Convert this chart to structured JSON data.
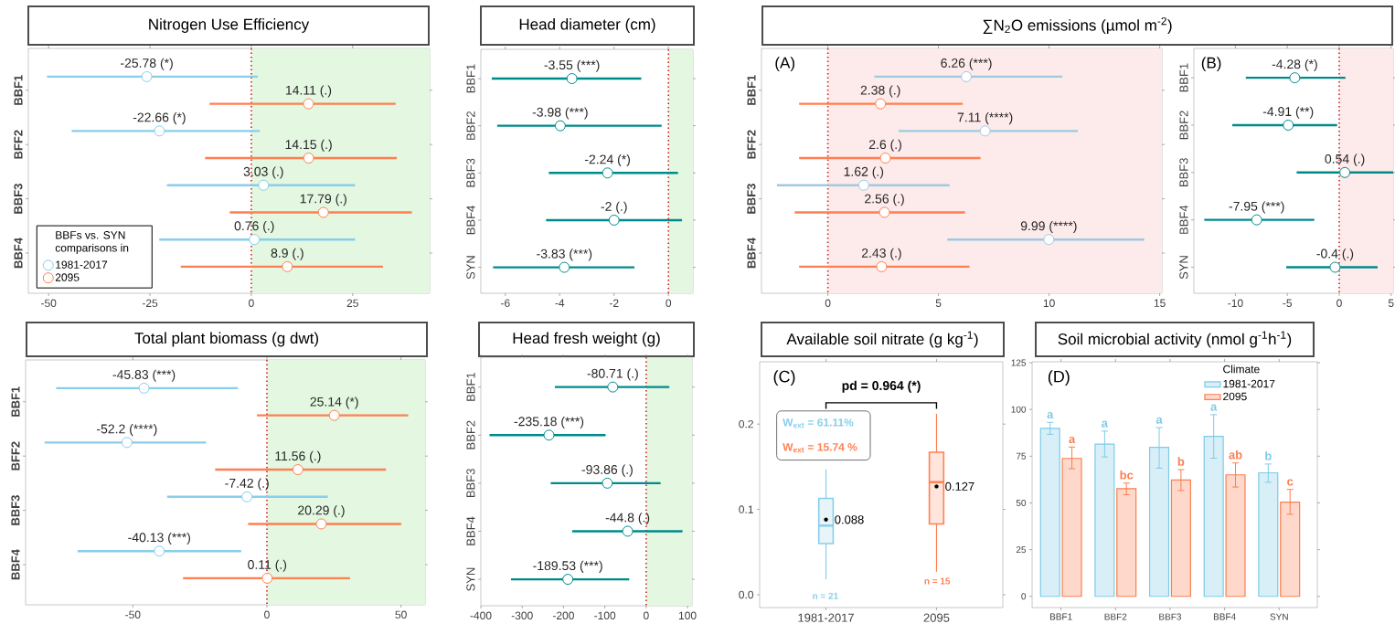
{
  "chart_data": [
    {
      "type": "scatter",
      "orientation": "horizontal",
      "title": "Nitrogen Use Efficiency",
      "categories": [
        "BBF1",
        "BFF2",
        "BBF3",
        "BBF4"
      ],
      "xlim": [
        -55,
        44
      ],
      "xticks": [
        -50,
        -25,
        0,
        25
      ],
      "marker": "circle",
      "legend": "bottom left",
      "legend_title": "BBFs vs. SYN comparisons in",
      "series": [
        {
          "name": "1981-2017",
          "color": "#87ceeb",
          "values": [
            -25.78,
            -22.66,
            3.03,
            0.76
          ],
          "errors": [
            [
              -50.4,
              1.6
            ],
            [
              -44.3,
              2.1
            ],
            [
              -20.8,
              25.6
            ],
            [
              -22.7,
              25.6
            ]
          ],
          "value_labels": [
            "-25.78 (*)",
            "-22.66 (*)",
            "3.03 (.)",
            "0.76 (.)"
          ]
        },
        {
          "name": "2095",
          "color": "#ff7f50",
          "values": [
            14.11,
            14.15,
            17.79,
            8.9
          ],
          "errors": [
            [
              -10.3,
              35.6
            ],
            [
              -11.4,
              35.9
            ],
            [
              -5.3,
              39.6
            ],
            [
              -17.4,
              32.5
            ]
          ],
          "value_labels": [
            "14.11 (.)",
            "14.15 (.)",
            "17.79 (.)",
            "8.9 (.)"
          ]
        }
      ],
      "ref_lines": [
        {
          "axis": "x",
          "value": 0,
          "color": "#cc2222",
          "line_style": "dotted"
        }
      ],
      "bands": [
        {
          "axis": "x",
          "from": 0,
          "to": 44,
          "color": "#e3f7e1"
        }
      ]
    },
    {
      "type": "scatter",
      "orientation": "horizontal",
      "title": "Head diameter (cm)",
      "categories": [
        "BBF1",
        "BBF2",
        "BBF3",
        "BBF4",
        "SYN"
      ],
      "xlim": [
        -6.9,
        0.9
      ],
      "xticks": [
        -6,
        -4,
        -2,
        0
      ],
      "marker": "circle",
      "series": [
        {
          "color": "#008b8b",
          "values": [
            -3.55,
            -3.98,
            -2.24,
            -2,
            -3.83
          ],
          "errors": [
            [
              -6.5,
              -1.0
            ],
            [
              -6.3,
              -0.25
            ],
            [
              -4.4,
              0.35
            ],
            [
              -4.5,
              0.5
            ],
            [
              -6.45,
              -1.25
            ]
          ],
          "value_labels": [
            "-3.55 (***)",
            "-3.98 (***)",
            "-2.24 (*)",
            "-2 (.)",
            "-3.83 (***)"
          ]
        }
      ],
      "ref_lines": [
        {
          "axis": "x",
          "value": 0,
          "color": "#cc2222",
          "line_style": "dotted"
        }
      ],
      "bands": [
        {
          "axis": "x",
          "from": 0,
          "to": 0.9,
          "color": "#e3f7e1"
        }
      ]
    },
    {
      "type": "scatter",
      "orientation": "horizontal",
      "title": "∑N$_{2}$O emissions (µmol m$^{-2}$)",
      "categories": [
        "BBF1",
        "BFF2",
        "BBF3",
        "BBF4"
      ],
      "xlim": [
        -3,
        15.1
      ],
      "xticks": [
        0,
        5,
        10,
        15
      ],
      "marker": "circle",
      "annotations": [
        "(A)"
      ],
      "series": [
        {
          "color": "#9ecae1",
          "values": [
            6.26,
            7.11,
            1.62,
            9.99
          ],
          "errors": [
            [
              2.1,
              10.6
            ],
            [
              3.2,
              11.3
            ],
            [
              -2.3,
              5.5
            ],
            [
              5.4,
              14.3
            ]
          ],
          "value_labels": [
            "6.26 (***)",
            "7.11 (****)",
            "1.62 (.)",
            "9.99 (****)"
          ]
        },
        {
          "color": "#ff7f50",
          "values": [
            2.38,
            2.6,
            2.56,
            2.43
          ],
          "errors": [
            [
              -1.3,
              6.1
            ],
            [
              -1.3,
              6.9
            ],
            [
              -1.5,
              6.2
            ],
            [
              -1.3,
              6.4
            ]
          ],
          "value_labels": [
            "2.38 (.)",
            "2.6 (.)",
            "2.56 (.)",
            "2.43 (.)"
          ]
        }
      ],
      "ref_lines": [
        {
          "axis": "x",
          "value": 0,
          "color": "#cc2222",
          "line_style": "dotted"
        }
      ],
      "bands": [
        {
          "axis": "x",
          "from": 0,
          "to": 15.1,
          "color": "#fdeaea"
        }
      ]
    },
    {
      "type": "scatter",
      "orientation": "horizontal",
      "categories": [
        "BBF1",
        "BBF2",
        "BBF3",
        "BBF4",
        "SYN"
      ],
      "xlim": [
        -14,
        5.2
      ],
      "xticks": [
        -10,
        -5,
        0,
        5
      ],
      "marker": "circle",
      "annotations": [
        "(B)"
      ],
      "series": [
        {
          "color": "#008b8b",
          "values": [
            -4.28,
            -4.91,
            0.54,
            -7.95,
            -0.4
          ],
          "errors": [
            [
              -9.0,
              0.6
            ],
            [
              -10.3,
              -0.2
            ],
            [
              -4.1,
              5.2
            ],
            [
              -13.0,
              -2.4
            ],
            [
              -5.1,
              3.7
            ]
          ],
          "value_labels": [
            "-4.28 (*)",
            "-4.91 (**)",
            "0.54 (.)",
            "-7.95 (***)",
            "-0.4 (.)"
          ]
        }
      ],
      "ref_lines": [
        {
          "axis": "x",
          "value": 0,
          "color": "#cc2222",
          "line_style": "dotted"
        }
      ],
      "bands": [
        {
          "axis": "x",
          "from": 0,
          "to": 5.2,
          "color": "#fdeaea"
        }
      ]
    },
    {
      "type": "scatter",
      "orientation": "horizontal",
      "title": "Total plant biomass (g dwt)",
      "categories": [
        "BBF1",
        "BFF2",
        "BBF3",
        "BBF4"
      ],
      "xlim": [
        -90,
        59
      ],
      "xticks": [
        -50,
        0,
        50
      ],
      "marker": "circle",
      "series": [
        {
          "color": "#87ceeb",
          "values": [
            -45.83,
            -52.2,
            -7.42,
            -40.13
          ],
          "errors": [
            [
              -78.6,
              -10.8
            ],
            [
              -82.9,
              -22.7
            ],
            [
              -37.2,
              22.7
            ],
            [
              -70.6,
              -9.6
            ]
          ],
          "value_labels": [
            "-45.83 (***)",
            "-52.2 (****)",
            "-7.42 (.)",
            "-40.13 (***)"
          ]
        },
        {
          "color": "#ff7f50",
          "values": [
            25.14,
            11.56,
            20.29,
            0.11
          ],
          "errors": [
            [
              -3.7,
              52.7
            ],
            [
              -19.3,
              44.4
            ],
            [
              -7.0,
              50.1
            ],
            [
              -31.3,
              31.0
            ]
          ],
          "value_labels": [
            "25.14 (*)",
            "11.56 (.)",
            "20.29 (.)",
            "0.11 (.)"
          ]
        }
      ],
      "ref_lines": [
        {
          "axis": "x",
          "value": 0,
          "color": "#cc2222",
          "line_style": "dotted"
        }
      ],
      "bands": [
        {
          "axis": "x",
          "from": 0,
          "to": 59,
          "color": "#e3f7e1"
        }
      ]
    },
    {
      "type": "scatter",
      "orientation": "horizontal",
      "title": "Head fresh weight (g)",
      "categories": [
        "BBF1",
        "BBF2",
        "BBF3",
        "BBF4",
        "SYN"
      ],
      "xlim": [
        -400,
        111
      ],
      "xticks": [
        -400,
        -300,
        -200,
        -100,
        0,
        100
      ],
      "marker": "circle",
      "series": [
        {
          "color": "#008b8b",
          "values": [
            -80.71,
            -235.18,
            -93.86,
            -44.8,
            -189.53
          ],
          "errors": [
            [
              -221,
              56
            ],
            [
              -379,
              -98
            ],
            [
              -231,
              35
            ],
            [
              -179,
              88
            ],
            [
              -327,
              -41
            ]
          ],
          "value_labels": [
            "-80.71 (.)",
            "-235.18 (***)",
            "-93.86 (.)",
            "-44.8 (.)",
            "-189.53 (***)"
          ]
        }
      ],
      "ref_lines": [
        {
          "axis": "x",
          "value": 0,
          "color": "#cc2222",
          "line_style": "dotted"
        }
      ],
      "bands": [
        {
          "axis": "x",
          "from": 0,
          "to": 111,
          "color": "#e3f7e1"
        }
      ]
    },
    {
      "type": "box",
      "title": "Available soil nitrate (g kg$^{-1}$)",
      "categories": [
        "1981-2017",
        "2095"
      ],
      "ylim": [
        -0.015,
        0.273
      ],
      "yticks": [
        {
          "value": 0,
          "label": "0.0"
        },
        {
          "value": 0.1,
          "label": "0.1"
        },
        {
          "value": 0.2,
          "label": "0.2"
        }
      ],
      "colors": [
        "#87ceeb",
        "#ff7f50"
      ],
      "boxes": [
        {
          "low": 0.018,
          "q1": 0.06,
          "median": 0.081,
          "q3": 0.113,
          "high": 0.147,
          "mean": 0.088
        },
        {
          "low": 0.027,
          "q1": 0.083,
          "median": 0.132,
          "q3": 0.167,
          "high": 0.212,
          "mean": 0.127
        }
      ],
      "annotations": [
        "(C)",
        "pd = 0.964 (*)",
        "W$_{ext}$ = 61.11%",
        "W$_{ext}$ = 15.74 %",
        {
          "text": "0.088",
          "x": "1981-2017",
          "y": 0.088
        },
        {
          "text": "0.127",
          "x": "2095",
          "y": 0.127
        },
        "n = 21",
        "n = 15"
      ]
    },
    {
      "type": "bar",
      "title": "Soil microbial activity (nmol g$^{-1}$h$^{-1}$)",
      "categories": [
        "BBF1",
        "BBF2",
        "BBF3",
        "BBF4",
        "SYN"
      ],
      "ylim": [
        -6,
        125.5
      ],
      "yticks": [
        0,
        25,
        50,
        75,
        100,
        125
      ],
      "legend": "top right",
      "legend_title": "Climate",
      "annotations": [
        "(D)"
      ],
      "series": [
        {
          "name": "1981-2017",
          "color": "#7ecbe6",
          "values": [
            89.9,
            81.4,
            79.7,
            85.6,
            66.1
          ],
          "errors": [
            [
              86.7,
              93.1
            ],
            [
              74.6,
              88.4
            ],
            [
              68.6,
              90.3
            ],
            [
              73.9,
              97.2
            ],
            [
              61.0,
              70.8
            ]
          ],
          "value_labels": [
            "a",
            "a",
            "a",
            "a",
            "b"
          ]
        },
        {
          "name": "2095",
          "color": "#fa7f50",
          "values": [
            73.8,
            57.6,
            62.3,
            65.0,
            50.4
          ],
          "errors": [
            [
              68.3,
              79.9
            ],
            [
              54.4,
              60.6
            ],
            [
              56.6,
              67.8
            ],
            [
              58.5,
              71.4
            ],
            [
              43.9,
              57.2
            ]
          ],
          "value_labels": [
            "a",
            "bc",
            "b",
            "ab",
            "c"
          ]
        }
      ]
    }
  ]
}
